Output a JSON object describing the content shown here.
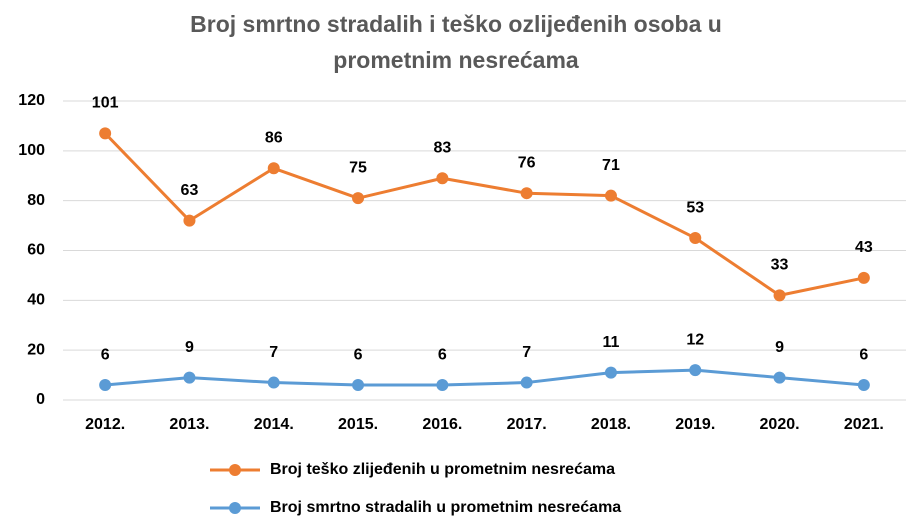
{
  "chart_data": {
    "type": "line",
    "stacked": true,
    "title": "Broj smrtno stradalih i teško ozlijeđenih osoba u prometnim nesrećama",
    "categories": [
      "2012.",
      "2013.",
      "2014.",
      "2015.",
      "2016.",
      "2017.",
      "2018.",
      "2019.",
      "2020.",
      "2021."
    ],
    "series": [
      {
        "name": "Broj teško zlijeđenih u prometnim nesrećama",
        "color": "#ed7d31",
        "values": [
          101,
          63,
          86,
          75,
          83,
          76,
          71,
          53,
          33,
          43
        ]
      },
      {
        "name": "Broj smrtno stradalih u prometnim nesrećama",
        "color": "#5b9bd5",
        "values": [
          6,
          9,
          7,
          6,
          6,
          7,
          11,
          12,
          9,
          6
        ]
      }
    ],
    "ylim": [
      0,
      120
    ],
    "yticks": [
      0,
      20,
      40,
      60,
      80,
      100,
      120
    ],
    "grid": true,
    "legend": "bottom"
  }
}
